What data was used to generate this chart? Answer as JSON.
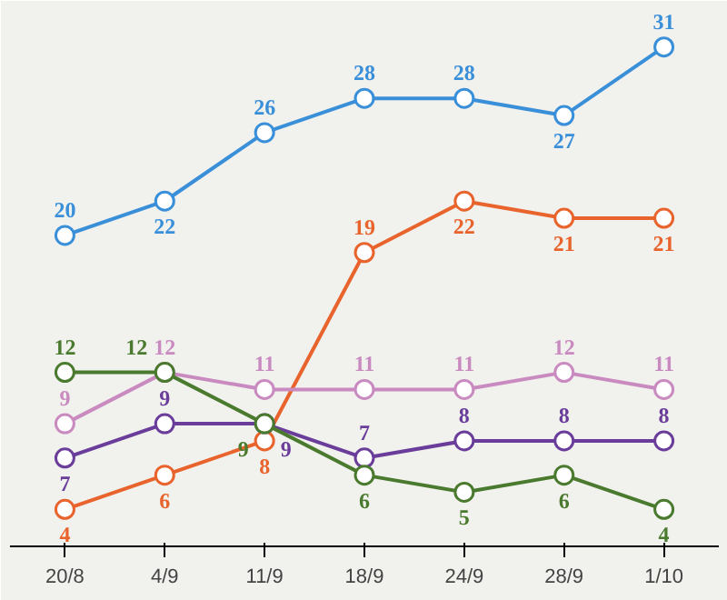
{
  "chart_data": {
    "type": "line",
    "categories": [
      "20/8",
      "4/9",
      "11/9",
      "18/9",
      "24/9",
      "28/9",
      "1/10"
    ],
    "data_labels": true,
    "marker": "circle",
    "grid": false,
    "tick_labels": "x",
    "series": [
      {
        "color": "#3a8fd9",
        "values": [
          20,
          22,
          26,
          28,
          28,
          27,
          31
        ]
      },
      {
        "color": "#e8642c",
        "values": [
          4,
          6,
          8,
          19,
          22,
          21,
          21
        ]
      },
      {
        "color": "#c98ac0",
        "values": [
          9,
          12,
          11,
          11,
          11,
          12,
          11
        ]
      },
      {
        "color": "#6a3d9a",
        "values": [
          7,
          9,
          9,
          7,
          8,
          8,
          8
        ]
      },
      {
        "color": "#4a7a2e",
        "values": [
          12,
          12,
          9,
          6,
          5,
          6,
          4
        ]
      }
    ]
  }
}
